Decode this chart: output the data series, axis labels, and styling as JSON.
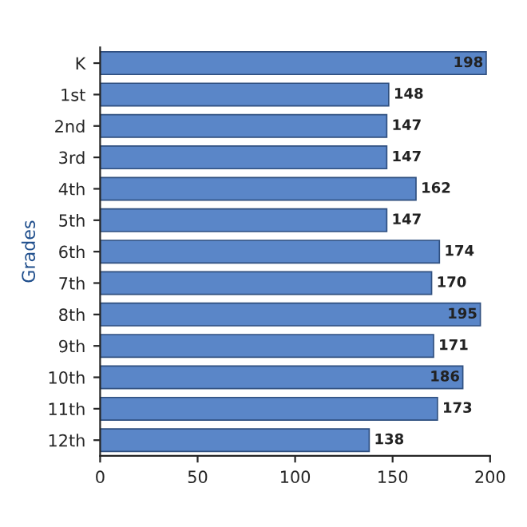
{
  "chart_data": {
    "type": "bar",
    "orientation": "horizontal",
    "ylabel": "Grades",
    "categories": [
      "K",
      "1st",
      "2nd",
      "3rd",
      "4th",
      "5th",
      "6th",
      "7th",
      "8th",
      "9th",
      "10th",
      "11th",
      "12th"
    ],
    "values": [
      198,
      148,
      147,
      147,
      162,
      147,
      174,
      170,
      195,
      171,
      186,
      173,
      138
    ],
    "color": "#5a86c8",
    "xlim": [
      0,
      200
    ],
    "xticks": [
      0,
      50,
      100,
      150,
      200
    ],
    "data_labels": true,
    "grid": false,
    "legend": false
  }
}
